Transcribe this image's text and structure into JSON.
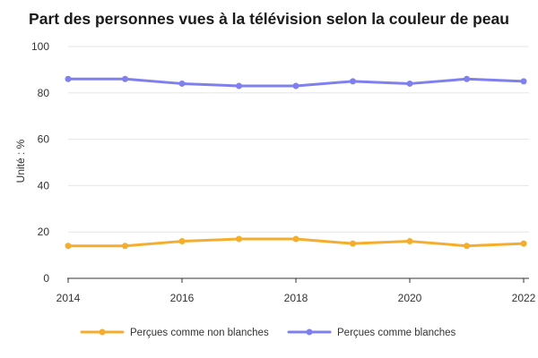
{
  "chart_data": {
    "type": "line",
    "title": "Part des personnes vues à la télévision selon la couleur de peau",
    "ylabel": "Unité : %",
    "xlabel": "",
    "x": [
      2014,
      2015,
      2016,
      2017,
      2018,
      2019,
      2020,
      2021,
      2022
    ],
    "x_ticks": [
      "2014",
      "2016",
      "2018",
      "2020",
      "2022"
    ],
    "y_ticks": [
      "0",
      "20",
      "40",
      "60",
      "80",
      "100"
    ],
    "ylim": [
      0,
      100
    ],
    "xlim": [
      2014,
      2022
    ],
    "grid": "horizontal",
    "legend_position": "bottom",
    "series": [
      {
        "name": "Perçues comme non blanches",
        "color": "#f5ad2d",
        "values": [
          14,
          14,
          16,
          17,
          17,
          15,
          16,
          14,
          15
        ]
      },
      {
        "name": "Perçues comme blanches",
        "color": "#7f7fef",
        "values": [
          86,
          86,
          84,
          83,
          83,
          85,
          84,
          86,
          85
        ]
      }
    ]
  }
}
